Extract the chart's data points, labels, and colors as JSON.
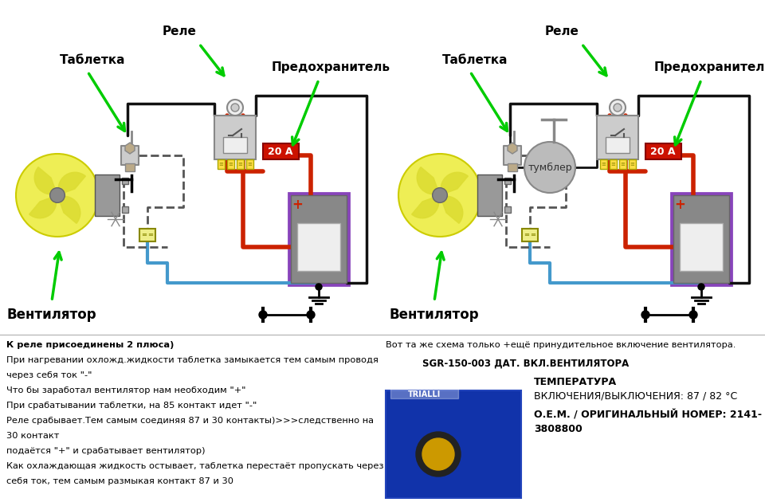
{
  "bg_color": "#ffffff",
  "arrow_color": "#00cc00",
  "wire_red": "#cc2200",
  "wire_blue": "#4499cc",
  "wire_black": "#111111",
  "wire_dashed": "#555555",
  "fuse_color": "#cc1100",
  "fuse_text_color": "#ffffff",
  "fuse_value": "20 А",
  "relay_fill": "#dddddd",
  "relay_edge": "#888888",
  "relay_pin_fill": "#ffdd44",
  "relay_pin_edge": "#aaa800",
  "battery_edge": "#8844bb",
  "battery_fill": "#c8aae0",
  "battery_inner": "#d8d8d8",
  "tumbler_fill": "#bbbbbb",
  "tumbler_edge": "#888888",
  "fan_fill": "#eeee55",
  "motor_fill": "#999999",
  "connector_fill": "#eeee88",
  "connector_edge": "#888800",
  "divider_color": "#bbbbbb",
  "text_color": "#111111",
  "label_relay_L": "Реле",
  "label_tablet_L": "Таблетка",
  "label_fuse_L": "Предохранитель",
  "label_fan_L": "Вентилятор",
  "label_relay_R": "Реле",
  "label_tablet_R": "Таблетка",
  "label_fuse_R": "Предохранитель",
  "label_fan_R": "Вентилятор",
  "label_tumbler": "тумблер",
  "bottom_left": [
    "К реле присоединены 2 плюса)",
    "При нагревании охложд.жидкости таблетка замыкается тем самым проводя",
    "через себя ток \"-\"",
    "Что бы заработал вентилятор нам необходим \"+\"",
    "При срабатывании таблетки, на 85 контакт идет \"-\"",
    "Реле срабывает.Тем самым соединяя 87 и 30 контакты)>>>следственно на",
    "30 контакт",
    "подаётся \"+\" и срабатывает вентилятор)",
    "Как охлаждающая жидкость остывает, таблетка перестаёт пропускать через",
    "себя ток, тем самым размыкая контакт 87 и 30"
  ],
  "bottom_right_1": "Вот та же схема только +ещё принудительное включение вентилятора.",
  "bottom_right_2": "SGR-150-003 ДАТ. ВКЛ.ВЕНТИЛЯТОРА",
  "bottom_right_3": "ТЕМПЕРАТУРА",
  "bottom_right_4": "ВКЛЮЧЕНИЯ/ВЫКЛЮЧЕНИЯ: 87 / 82 °С",
  "bottom_right_5": "О.Е.М. / ОРИГИНАЛЬНЫЙ НОМЕР: 2141-",
  "bottom_right_6": "3808800"
}
